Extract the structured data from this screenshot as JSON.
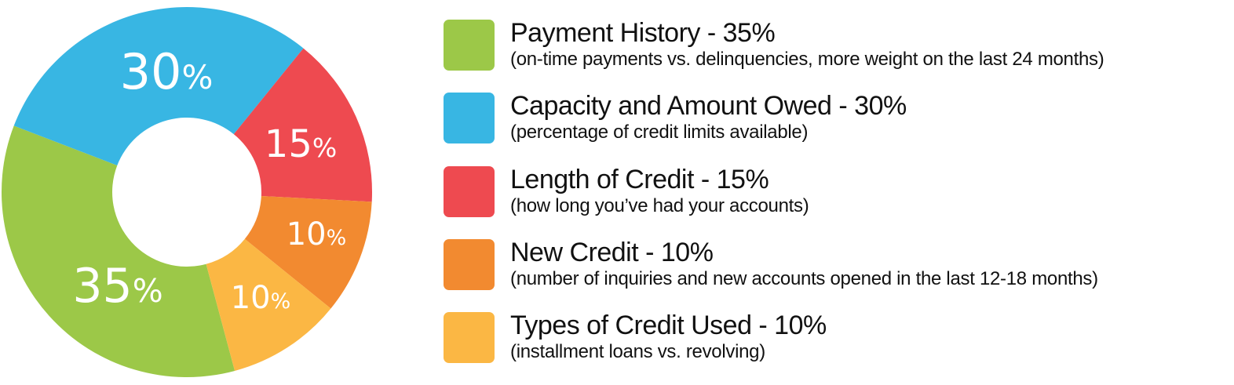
{
  "chart_data": {
    "type": "pie",
    "donut": true,
    "slices": [
      {
        "label": "Payment History",
        "value": 35,
        "data_label": "35%",
        "color": "#9CC848",
        "legend_title": "Payment History - 35%",
        "legend_subtitle": "(on-time payments vs. delinquencies, more weight on the last 24 months)"
      },
      {
        "label": "Capacity and Amount Owed",
        "value": 30,
        "data_label": "30%",
        "color": "#38B6E3",
        "legend_title": "Capacity and Amount Owed - 30%",
        "legend_subtitle": "(percentage of credit limits available)"
      },
      {
        "label": "Length of Credit",
        "value": 15,
        "data_label": "15%",
        "color": "#EE4A50",
        "legend_title": "Length of Credit - 15%",
        "legend_subtitle": "(how long you’ve had your accounts)"
      },
      {
        "label": "New Credit",
        "value": 10,
        "data_label": "10%",
        "color": "#F28A30",
        "legend_title": "New Credit - 10%",
        "legend_subtitle": "(number of inquiries and new accounts opened in the last 12-18 months)"
      },
      {
        "label": "Types of Credit Used",
        "value": 10,
        "data_label": "10%",
        "color": "#FBB744",
        "legend_title": "Types of Credit Used - 10%",
        "legend_subtitle": "(installment loans vs. revolving)"
      }
    ],
    "legend_placement": "right"
  }
}
